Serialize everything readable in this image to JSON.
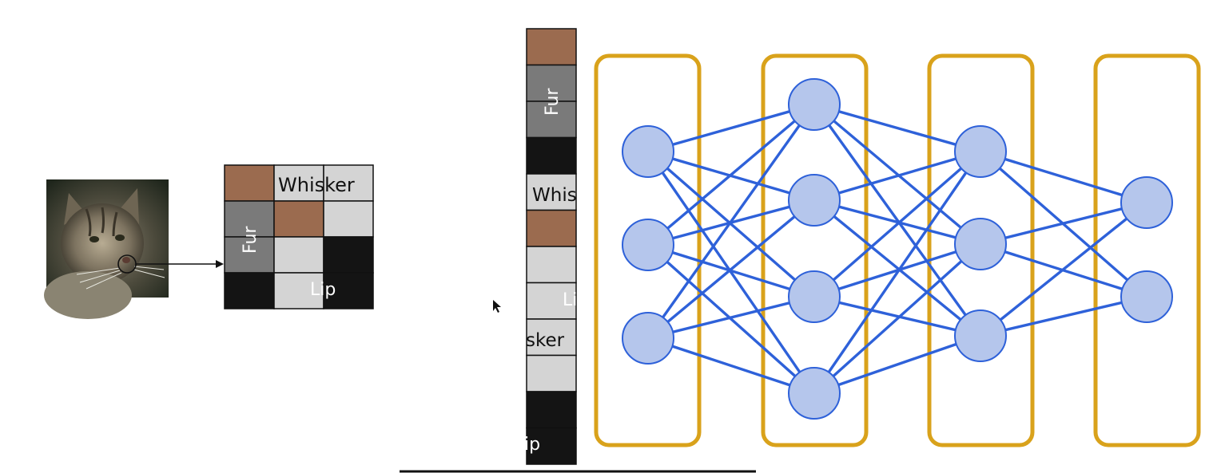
{
  "labels": {
    "whisker": "Whisker",
    "fur": "Fur",
    "lip": "Lip",
    "strip_whisker_partial": "Whis",
    "strip_fur": "Fur",
    "strip_lip_partial": "Li",
    "strip_sker_partial": "sker",
    "strip_ip_partial": "ip"
  },
  "colors": {
    "brown": "#9b6b4f",
    "dark_gray": "#7a7a7a",
    "light_gray": "#d4d4d4",
    "black": "#141414",
    "node_fill": "#b5c6ec",
    "node_stroke": "#2e61d9",
    "edge": "#2e61d9",
    "layer_box": "#d9a21b"
  },
  "grid": {
    "rows": 4,
    "cols": 3,
    "cells": [
      "brown",
      "light_gray",
      "light_gray",
      "dark_gray",
      "brown",
      "light_gray",
      "dark_gray",
      "light_gray",
      "black",
      "black",
      "light_gray",
      "black"
    ]
  },
  "flattened_vector": {
    "cells": [
      "brown",
      "dark_gray",
      "dark_gray",
      "black",
      "light_gray",
      "brown",
      "light_gray",
      "light_gray",
      "light_gray",
      "light_gray",
      "black",
      "black"
    ]
  },
  "network": {
    "layers": [
      3,
      4,
      3,
      2
    ]
  },
  "icons": {
    "cat_photo": "cat-photo",
    "cursor": "cursor-arrow-icon"
  }
}
